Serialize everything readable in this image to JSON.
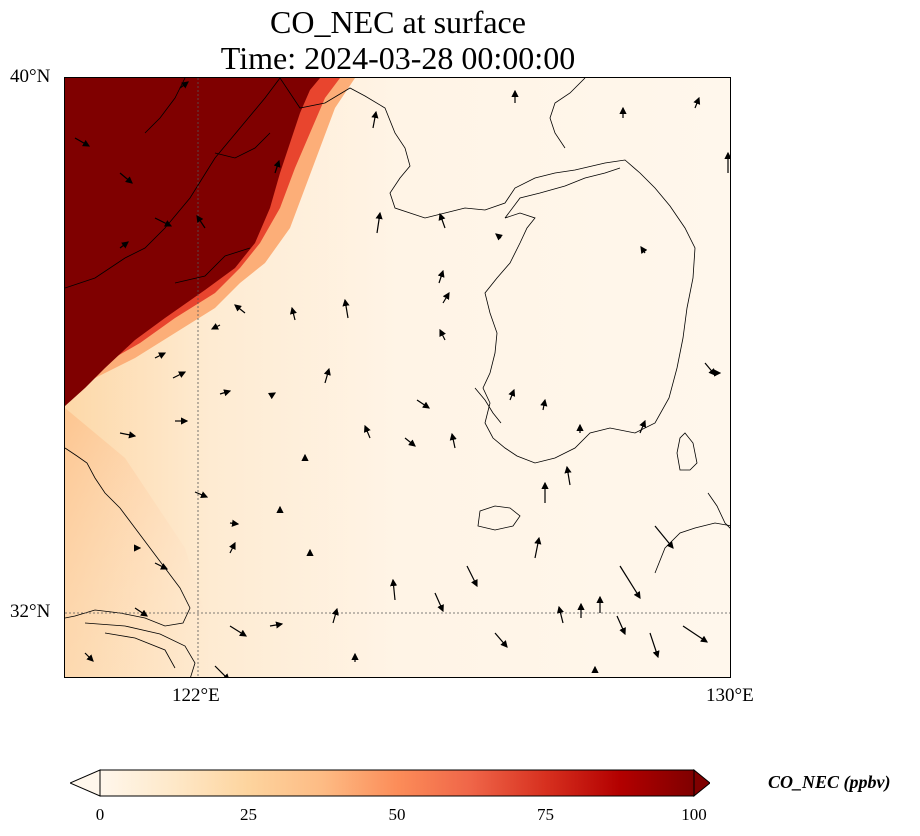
{
  "title": {
    "line1": "CO_NEC at surface",
    "line2": "Time: 2024-03-28 00:00:00"
  },
  "map": {
    "lat_ticks": [
      "40°N",
      "32°N"
    ],
    "lon_ticks": [
      "122°E",
      "130°E"
    ],
    "gridlines": "dotted",
    "vector_field": "wind arrows",
    "high_concentration_region": "northwest corner (Shandong / Bohai)"
  },
  "colorbar": {
    "label": "CO_NEC (ppbv)",
    "ticks": [
      "0",
      "25",
      "50",
      "75",
      "100"
    ],
    "min": 0,
    "max": 100,
    "extend": "both",
    "colormap": "OrRd",
    "colors": [
      "#fff7ec",
      "#fee8c8",
      "#fdd49e",
      "#fdbb84",
      "#fc8d59",
      "#ef6548",
      "#d7301f",
      "#b30000",
      "#7f0000"
    ]
  }
}
